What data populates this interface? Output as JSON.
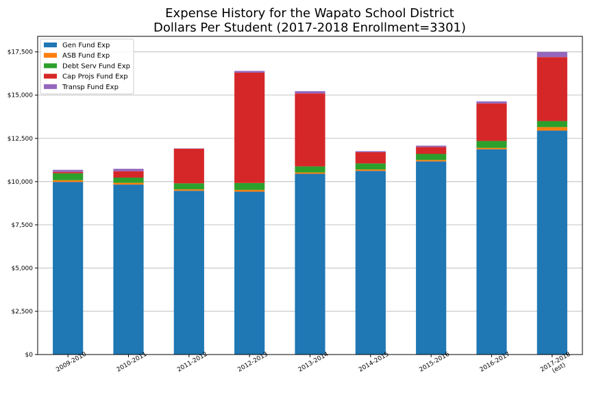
{
  "chart_data": {
    "type": "bar",
    "stacked": true,
    "title": "Expense History for the Wapato School District",
    "subtitle": "Dollars Per Student (2017-2018 Enrollment=3301)",
    "xlabel": "",
    "ylabel": "",
    "categories": [
      "2009-2010",
      "2010-2011",
      "2011-2012",
      "2012-2013",
      "2013-2014",
      "2014-2015",
      "2015-2016",
      "2016-2017",
      "2017-2018\n(est)"
    ],
    "ylim": [
      0,
      18400
    ],
    "yticks": [
      0,
      2500,
      5000,
      7500,
      10000,
      12500,
      15000,
      17500
    ],
    "ytick_labels": [
      "$0",
      "$2,500",
      "$5,000",
      "$7,500",
      "$10,000",
      "$12,500",
      "$15,000",
      "$17,500"
    ],
    "grid": "y",
    "legend_position": "top-left",
    "series": [
      {
        "name": "Gen Fund Exp",
        "color": "#1f77b4",
        "values": [
          9980,
          9830,
          9470,
          9420,
          10450,
          10620,
          11170,
          11870,
          12950
        ]
      },
      {
        "name": "ASB Fund Exp",
        "color": "#ff7f0e",
        "values": [
          100,
          100,
          80,
          100,
          80,
          80,
          80,
          80,
          200
        ]
      },
      {
        "name": "Debt Serv Fund Exp",
        "color": "#2ca02c",
        "values": [
          400,
          300,
          350,
          400,
          350,
          350,
          350,
          400,
          350
        ]
      },
      {
        "name": "Cap Projs Fund Exp",
        "color": "#d62728",
        "values": [
          80,
          370,
          2000,
          6380,
          4220,
          650,
          400,
          2170,
          3700
        ]
      },
      {
        "name": "Transp Fund Exp",
        "color": "#9467bd",
        "values": [
          120,
          140,
          20,
          100,
          130,
          60,
          80,
          120,
          300
        ]
      }
    ]
  }
}
